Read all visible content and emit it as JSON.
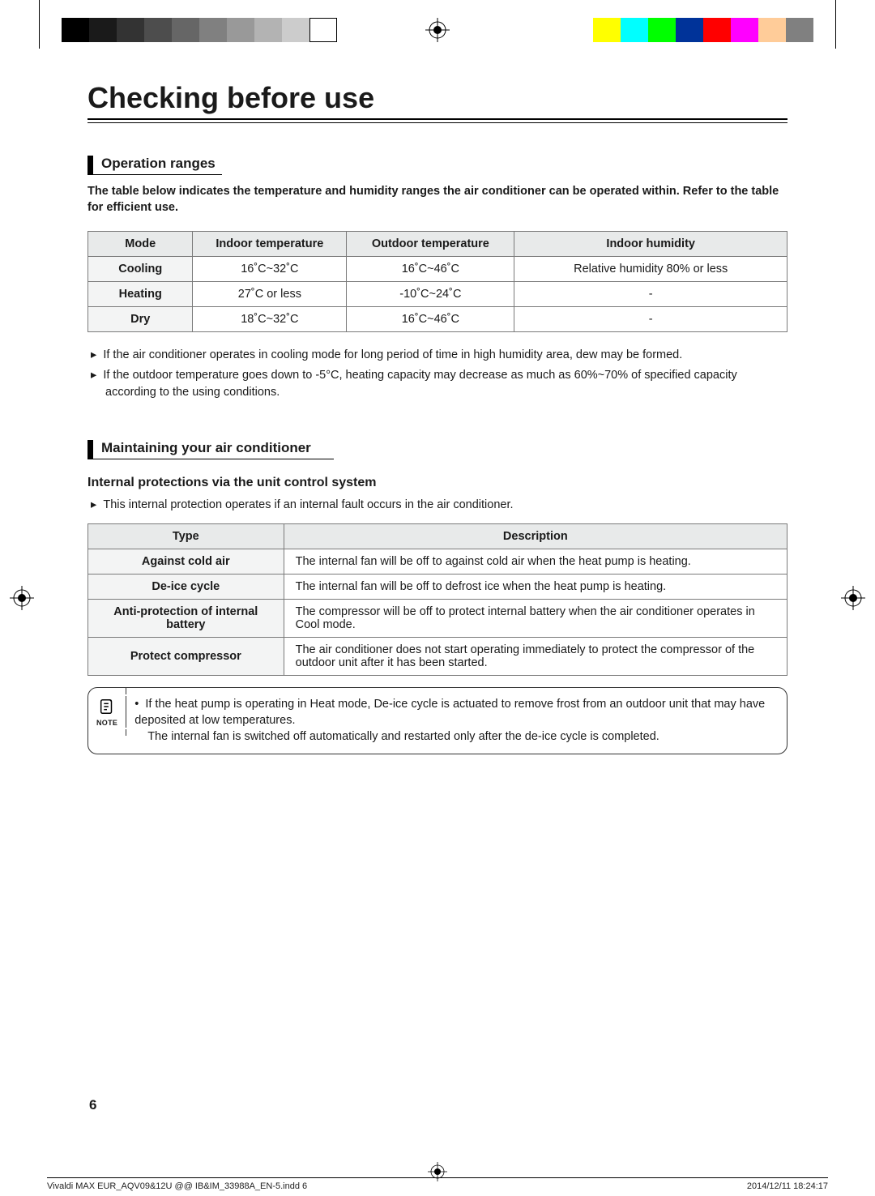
{
  "print_marks": {
    "grayscale_bars": [
      "#000000",
      "#1a1a1a",
      "#333333",
      "#4d4d4d",
      "#666666",
      "#808080",
      "#999999",
      "#b3b3b3",
      "#cccccc",
      "#ffffff"
    ],
    "color_bars": [
      "#ffff00",
      "#00ffff",
      "#00ff00",
      "#003399",
      "#ff0000",
      "#ff00ff",
      "#ffcc99",
      "#808080"
    ]
  },
  "page_title": "Checking before use",
  "section1": {
    "heading": "Operation ranges",
    "intro": "The table below indicates the temperature and humidity ranges the air conditioner can be operated within. Refer to the table for efficient use.",
    "table": {
      "headers": [
        "Mode",
        "Indoor temperature",
        "Outdoor temperature",
        "Indoor humidity"
      ],
      "rows": [
        [
          "Cooling",
          "16˚C~32˚C",
          "16˚C~46˚C",
          "Relative humidity 80% or less"
        ],
        [
          "Heating",
          "27˚C or less",
          "-10˚C~24˚C",
          "-"
        ],
        [
          "Dry",
          "18˚C~32˚C",
          "16˚C~46˚C",
          "-"
        ]
      ]
    },
    "notes": [
      "If the air conditioner operates in cooling mode for long period of time in high humidity area, dew may be formed.",
      "If the outdoor temperature goes down to -5°C, heating capacity may decrease as much as 60%~70% of specified capacity according to the using conditions."
    ]
  },
  "section2": {
    "heading": "Maintaining your air conditioner",
    "subheading": "Internal protections via the unit control system",
    "intro_bullet": "This internal protection operates if an internal fault occurs in the air conditioner.",
    "table": {
      "headers": [
        "Type",
        "Description"
      ],
      "rows": [
        [
          "Against cold air",
          "The internal fan will be off to against cold air when the heat pump is heating."
        ],
        [
          "De-ice cycle",
          "The internal fan will be off to defrost ice when the heat pump is heating."
        ],
        [
          "Anti-protection of internal battery",
          "The compressor will be off to protect internal battery when the air conditioner operates in Cool mode."
        ],
        [
          "Protect compressor",
          "The air conditioner does not start operating immediately to protect the compressor of the outdoor unit after it has been started."
        ]
      ]
    },
    "note": {
      "label": "NOTE",
      "line1": "If the heat pump is operating in Heat mode, De-ice cycle is actuated to remove frost from an outdoor unit that may have deposited at low temperatures.",
      "line2": "The internal fan is switched off automatically and restarted only after the de-ice cycle is completed."
    }
  },
  "page_number": "6",
  "footer": {
    "left": "Vivaldi MAX EUR_AQV09&12U @@ IB&IM_33988A_EN-5.indd   6",
    "right": "2014/12/11   18:24:17"
  }
}
